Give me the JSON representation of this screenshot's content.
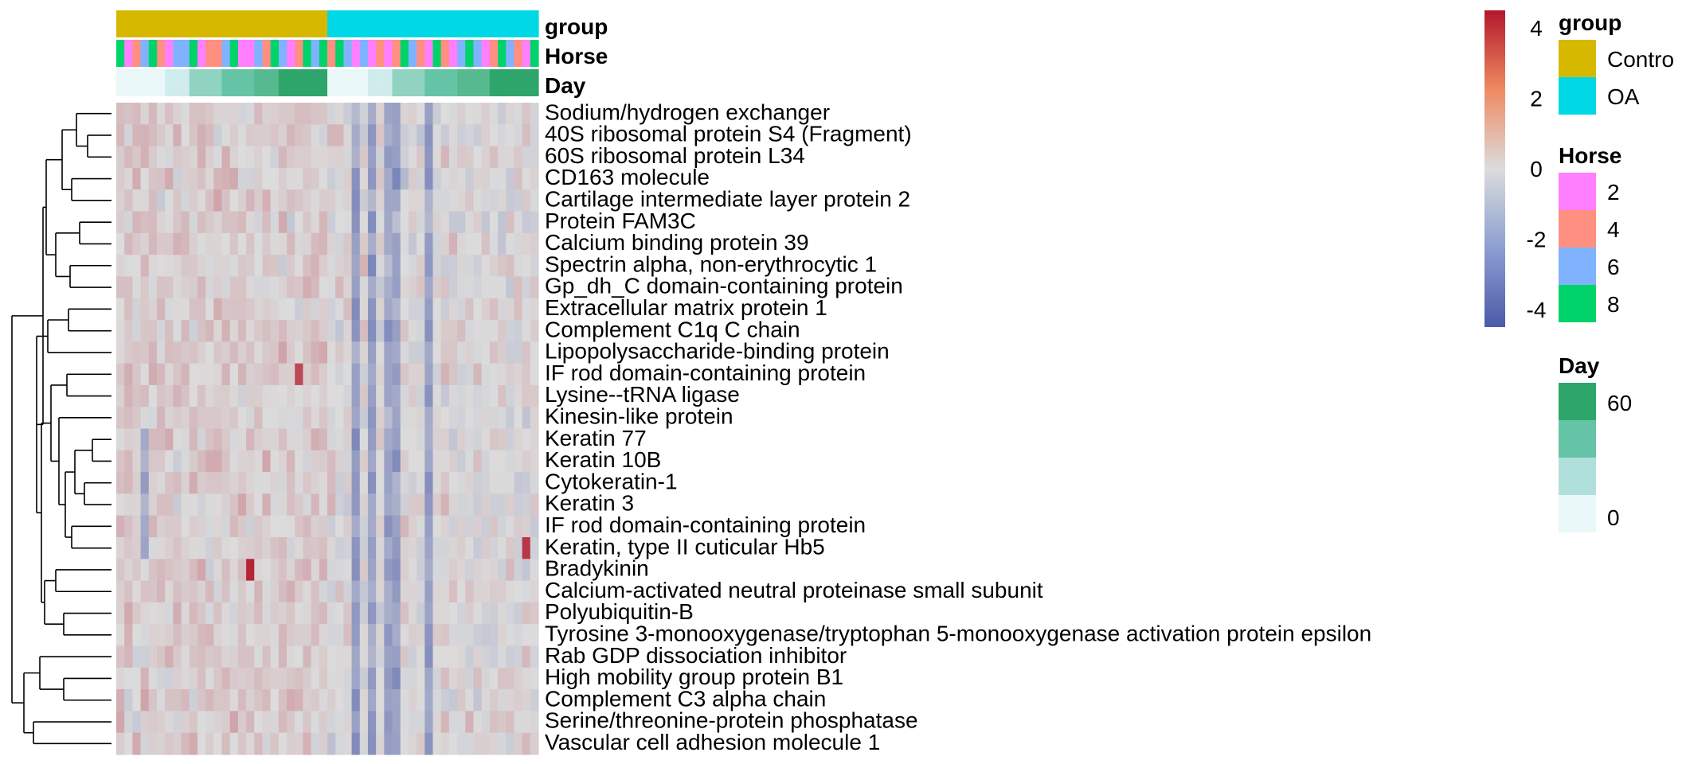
{
  "chart_data": {
    "type": "heatmap",
    "annotations": [
      {
        "name": "group",
        "categories": [
          "Control",
          "OA"
        ],
        "colors": [
          "#d6b800",
          "#00d8e6"
        ]
      },
      {
        "name": "Horse",
        "categories": [
          "2",
          "4",
          "6",
          "8"
        ],
        "colors": [
          "#ff7fff",
          "#ff8f80",
          "#7fb3ff",
          "#00d36a"
        ]
      },
      {
        "name": "Day",
        "categories": [
          "60",
          "",
          "",
          "0"
        ],
        "colors": [
          "#2ea56a",
          "#66c4a6",
          "#b0e0dc",
          "#eaf7f8"
        ]
      }
    ],
    "column_annotation_values": {
      "group": [
        "Control",
        "Control",
        "Control",
        "Control",
        "Control",
        "Control",
        "Control",
        "Control",
        "Control",
        "Control",
        "Control",
        "Control",
        "Control",
        "Control",
        "Control",
        "Control",
        "Control",
        "Control",
        "Control",
        "Control",
        "Control",
        "Control",
        "Control",
        "Control",
        "Control",
        "Control",
        "OA",
        "OA",
        "OA",
        "OA",
        "OA",
        "OA",
        "OA",
        "OA",
        "OA",
        "OA",
        "OA",
        "OA",
        "OA",
        "OA",
        "OA",
        "OA",
        "OA",
        "OA",
        "OA",
        "OA",
        "OA",
        "OA",
        "OA",
        "OA",
        "OA",
        "OA"
      ],
      "Horse": [
        "8",
        "2",
        "4",
        "6",
        "8",
        "4",
        "2",
        "6",
        "6",
        "8",
        "2",
        "4",
        "4",
        "6",
        "8",
        "2",
        "2",
        "6",
        "4",
        "8",
        "6",
        "2",
        "4",
        "8",
        "6",
        "8",
        "4",
        "8",
        "6",
        "2",
        "6",
        "2",
        "4",
        "2",
        "4",
        "8",
        "6",
        "4",
        "2",
        "8",
        "4",
        "2",
        "6",
        "8",
        "6",
        "2",
        "4",
        "8",
        "6",
        "4",
        "2",
        "8"
      ],
      "Day": [
        "0",
        "0",
        "0",
        "0",
        "0",
        "0",
        "7",
        "7",
        "7",
        "14",
        "14",
        "14",
        "14",
        "28",
        "28",
        "28",
        "28",
        "42",
        "42",
        "42",
        "60",
        "60",
        "60",
        "60",
        "60",
        "60",
        "0",
        "0",
        "0",
        "0",
        "0",
        "7",
        "7",
        "7",
        "14",
        "14",
        "14",
        "14",
        "28",
        "28",
        "28",
        "28",
        "42",
        "42",
        "42",
        "42",
        "60",
        "60",
        "60",
        "60",
        "60",
        "60"
      ]
    },
    "row_labels": [
      "Sodium/hydrogen exchanger",
      "40S ribosomal protein S4 (Fragment)",
      "60S ribosomal protein L34",
      "CD163 molecule",
      "Cartilage intermediate layer protein 2",
      "Protein FAM3C",
      "Calcium binding protein 39",
      "Spectrin alpha, non-erythrocytic 1",
      "Gp_dh_C domain-containing protein",
      "Extracellular matrix protein 1",
      "Complement C1q C chain",
      "Lipopolysaccharide-binding protein",
      "IF rod domain-containing protein",
      "Lysine--tRNA ligase",
      "Kinesin-like protein",
      "Keratin 77",
      "Keratin 10B",
      "Cytokeratin-1",
      "Keratin 3",
      "IF rod domain-containing protein",
      "Keratin, type II cuticular Hb5",
      "Bradykinin",
      "Calcium-activated neutral proteinase small subunit",
      "Polyubiquitin-B",
      "Tyrosine 3-monooxygenase/tryptophan 5-monooxygenase activation protein epsilon",
      "Rab GDP dissociation inhibitor",
      "High mobility group protein B1",
      "Complement C3 alpha chain",
      "Serine/threonine-protein phosphatase",
      "Vascular cell adhesion molecule 1"
    ],
    "color_scale": {
      "min": -4.5,
      "max": 4.5,
      "ticks": [
        4,
        2,
        0,
        -2,
        -4
      ],
      "low": "#4a5aa8",
      "mid": "#dcdcdc",
      "high": "#b2182b"
    },
    "n_columns": 52,
    "cell_value_pattern": {
      "strong_negative_columns": [
        29,
        31,
        33,
        34,
        38
      ],
      "note_values": "z-scores approximately between -4 and 4"
    }
  },
  "legend": {
    "group_title": "group",
    "group_items": [
      "Contro",
      "OA"
    ],
    "horse_title": "Horse",
    "horse_items": [
      "2",
      "4",
      "6",
      "8"
    ],
    "day_title": "Day",
    "day_ticks": [
      "60",
      "0"
    ],
    "scale_ticks": [
      "4",
      "2",
      "0",
      "-2",
      "-4"
    ]
  },
  "annotation_labels": [
    "group",
    "Horse",
    "Day"
  ]
}
